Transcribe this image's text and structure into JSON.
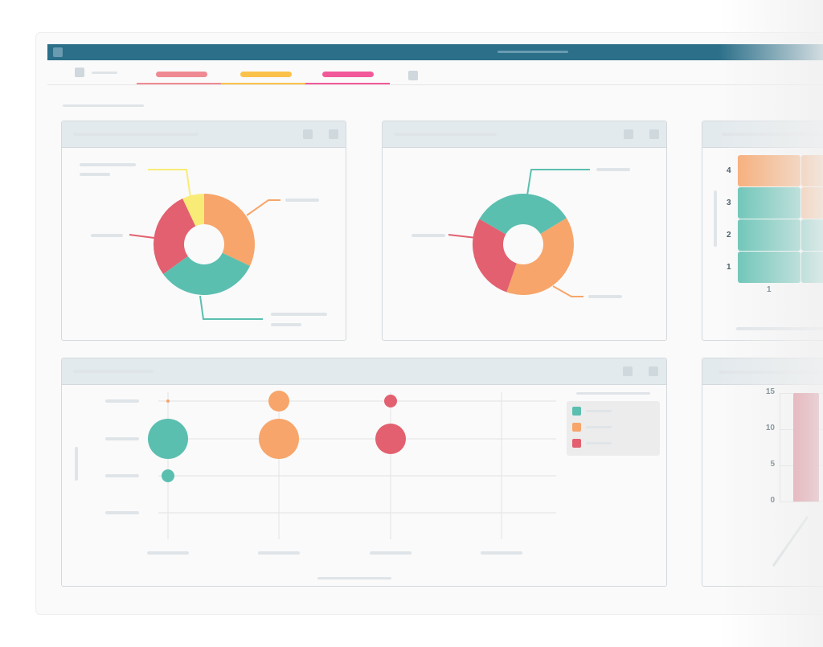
{
  "colors": {
    "teal": "#5bbfb0",
    "orange": "#f7a56a",
    "red": "#e2606f",
    "yellow": "#f8ec77",
    "titlebar": "#2b6f89"
  },
  "heatmap": {
    "type": "heatmap",
    "y_ticks": [
      "4",
      "3",
      "2",
      "1"
    ],
    "x_ticks": [
      "1"
    ],
    "cells": [
      [
        "orange",
        "orange"
      ],
      [
        "teal",
        "orange"
      ],
      [
        "teal",
        "teal"
      ],
      [
        "teal",
        "teal"
      ]
    ]
  },
  "chart_data": [
    {
      "type": "pie",
      "title": "",
      "slices": [
        {
          "color": "orange",
          "value": 32
        },
        {
          "color": "teal",
          "value": 33
        },
        {
          "color": "red",
          "value": 28
        },
        {
          "color": "yellow",
          "value": 7
        }
      ]
    },
    {
      "type": "pie",
      "title": "",
      "slices": [
        {
          "color": "teal",
          "value": 33
        },
        {
          "color": "orange",
          "value": 39
        },
        {
          "color": "red",
          "value": 28
        }
      ]
    },
    {
      "type": "scatter",
      "series": [
        {
          "color": "teal",
          "points": [
            [
              1,
              3,
              25
            ],
            [
              1,
              2,
              8
            ]
          ]
        },
        {
          "color": "orange",
          "points": [
            [
              1,
              4,
              2
            ],
            [
              2,
              4,
              13
            ],
            [
              2,
              3,
              25
            ]
          ]
        },
        {
          "color": "red",
          "points": [
            [
              3,
              4,
              8
            ],
            [
              3,
              3,
              19
            ]
          ]
        }
      ]
    },
    {
      "type": "bar",
      "y_ticks": [
        "15",
        "10",
        "5",
        "0"
      ],
      "ylim": [
        0,
        15
      ],
      "values": [
        15
      ]
    }
  ]
}
